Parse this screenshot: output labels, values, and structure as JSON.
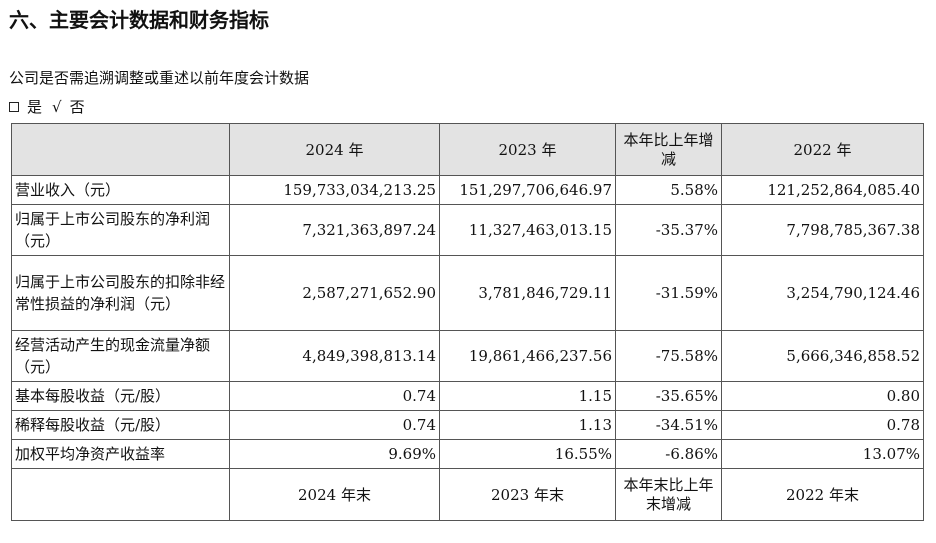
{
  "section": {
    "heading": "六、主要会计数据和财务指标",
    "question": "公司是否需追溯调整或重述以前年度会计数据",
    "choice_yes": "是",
    "choice_check": "√",
    "choice_no": "否"
  },
  "table": {
    "headers": [
      "",
      "2024 年",
      "2023 年",
      "本年比上年增减",
      "2022 年"
    ],
    "rows": [
      {
        "label": "营业收入（元）",
        "values": [
          "159,733,034,213.25",
          "151,297,706,646.97",
          "5.58%",
          "121,252,864,085.40"
        ]
      },
      {
        "label": "归属于上市公司股东的净利润（元）",
        "values": [
          "7,321,363,897.24",
          "11,327,463,013.15",
          "-35.37%",
          "7,798,785,367.38"
        ]
      },
      {
        "label": "归属于上市公司股东的扣除非经常性损益的净利润（元）",
        "values": [
          "2,587,271,652.90",
          "3,781,846,729.11",
          "-31.59%",
          "3,254,790,124.46"
        ]
      },
      {
        "label": "经营活动产生的现金流量净额（元）",
        "values": [
          "4,849,398,813.14",
          "19,861,466,237.56",
          "-75.58%",
          "5,666,346,858.52"
        ]
      },
      {
        "label": "基本每股收益（元/股）",
        "values": [
          "0.74",
          "1.15",
          "-35.65%",
          "0.80"
        ]
      },
      {
        "label": "稀释每股收益（元/股）",
        "values": [
          "0.74",
          "1.13",
          "-34.51%",
          "0.78"
        ]
      },
      {
        "label": "加权平均净资产收益率",
        "values": [
          "9.69%",
          "16.55%",
          "-6.86%",
          "13.07%"
        ]
      }
    ],
    "footer": [
      "",
      "2024 年末",
      "2023 年末",
      "本年末比上年末增减",
      "2022 年末"
    ]
  }
}
